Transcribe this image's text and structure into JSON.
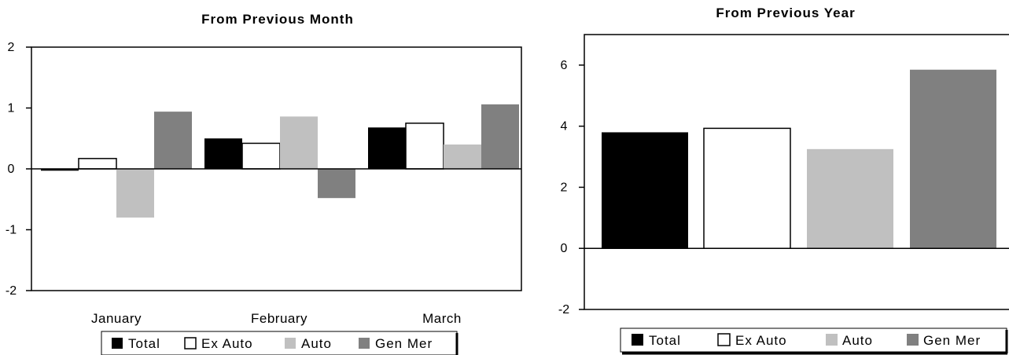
{
  "chart_data": [
    {
      "type": "bar",
      "title": "From Previous Month",
      "categories": [
        "January",
        "February",
        "March"
      ],
      "series": [
        {
          "name": "Total",
          "values": [
            -0.03,
            0.5,
            0.68
          ]
        },
        {
          "name": "Ex Auto",
          "values": [
            0.17,
            0.42,
            0.75
          ]
        },
        {
          "name": "Auto",
          "values": [
            -0.8,
            0.86,
            0.4
          ]
        },
        {
          "name": "Gen Mer",
          "values": [
            0.94,
            -0.48,
            1.06
          ]
        }
      ],
      "ylim": [
        -2,
        2
      ],
      "yticks": [
        "-2",
        "-1",
        "0",
        "1",
        "2"
      ],
      "xlabel": "",
      "ylabel": "",
      "legend_position": "bottom",
      "grid": false
    },
    {
      "type": "bar",
      "title": "From Previous Year",
      "categories": [
        ""
      ],
      "series": [
        {
          "name": "Total",
          "values": [
            3.8
          ]
        },
        {
          "name": "Ex Auto",
          "values": [
            3.93
          ]
        },
        {
          "name": "Auto",
          "values": [
            3.25
          ]
        },
        {
          "name": "Gen Mer",
          "values": [
            5.85
          ]
        }
      ],
      "ylim": [
        -2,
        7
      ],
      "yticks": [
        "-2",
        "0",
        "2",
        "4",
        "6"
      ],
      "xlabel": "",
      "ylabel": "",
      "legend_position": "bottom",
      "grid": false
    }
  ],
  "series_colors": {
    "Total": "#000000",
    "Ex Auto": "#ffffff",
    "Auto": "#c0c0c0",
    "Gen Mer": "#808080"
  }
}
